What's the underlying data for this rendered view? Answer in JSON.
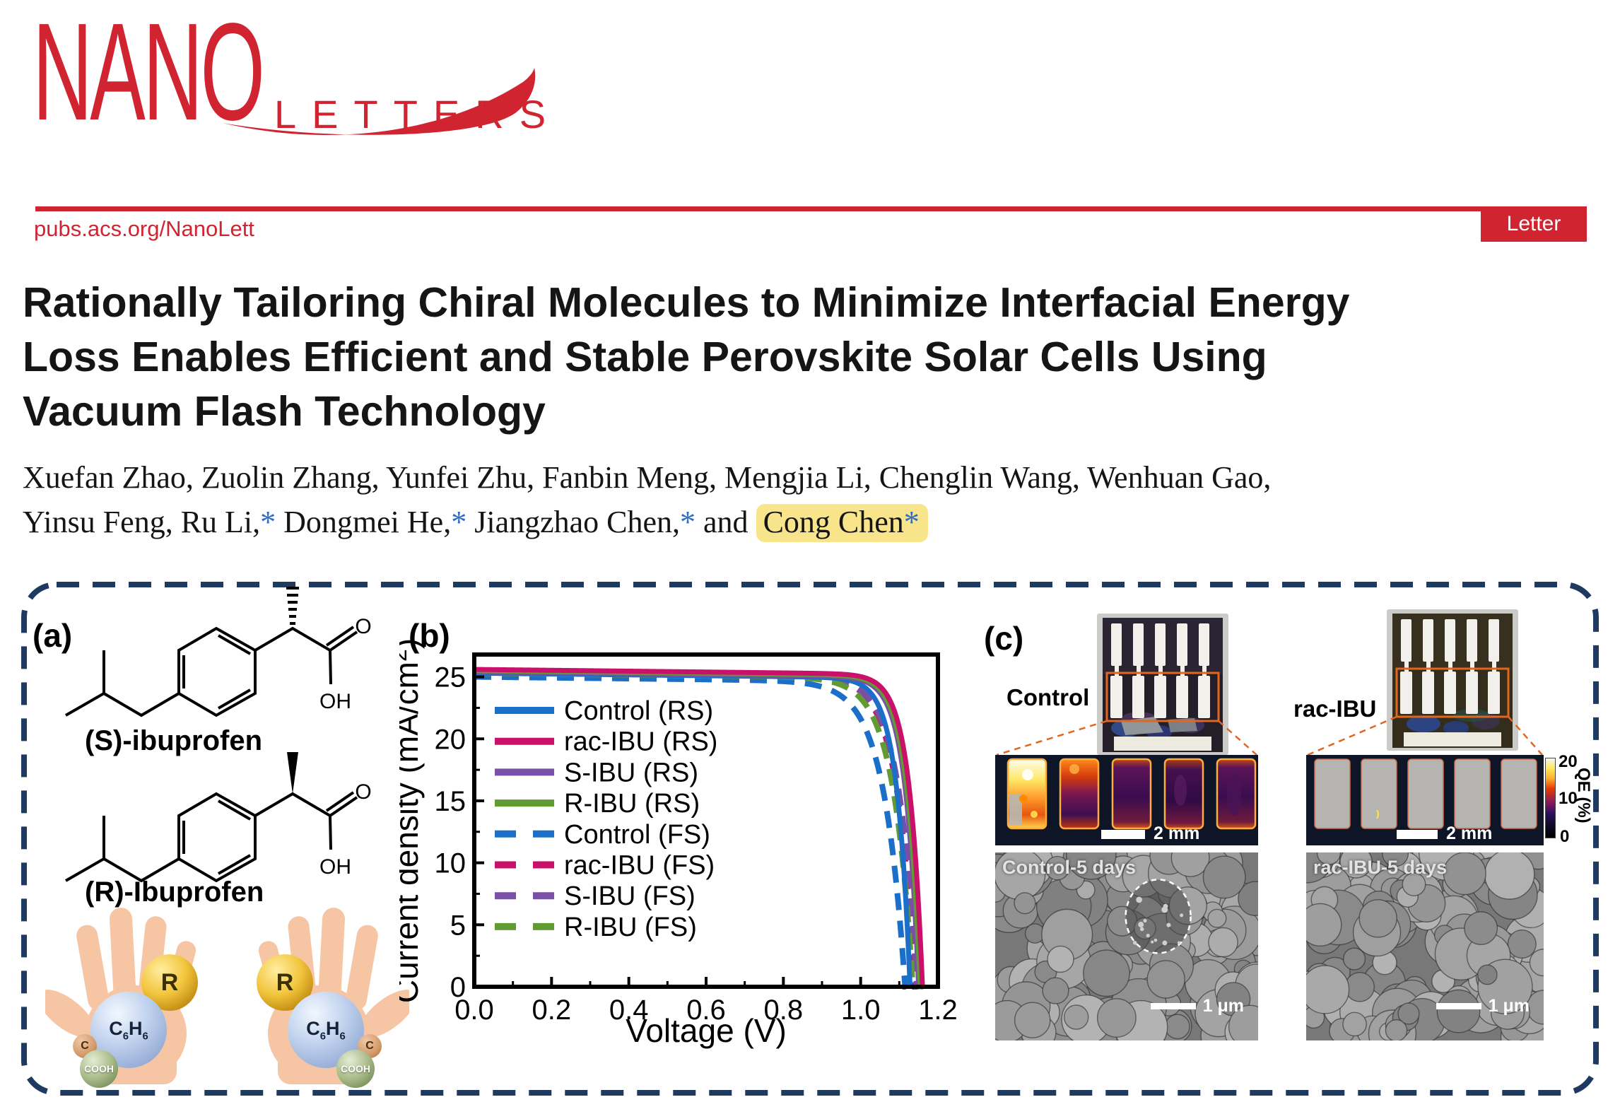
{
  "header": {
    "logo_main": "NANO",
    "logo_sub": "LETTERS",
    "site_url": "pubs.acs.org/NanoLett",
    "badge": "Letter",
    "accent_red": "#d02431"
  },
  "article": {
    "title_line1": "Rationally Tailoring Chiral Molecules to Minimize Interfacial Energy",
    "title_line2": "Loss Enables Efficient and Stable Perovskite Solar Cells Using",
    "title_line3": "Vacuum Flash Technology",
    "authors_line1": "Xuefan Zhao, Zuolin Zhang, Yunfei Zhu, Fanbin Meng, Mengjia Li, Chenglin Wang, Wenhuan Gao,",
    "authors_line2_seg1": "Yinsu Feng, Ru Li,",
    "authors_line2_seg2": " Dongmei He,",
    "authors_line2_seg3": " Jiangzhao Chen,",
    "authors_line2_seg4": " and ",
    "authors_highlight": "Cong Chen",
    "star": "*",
    "star_color": "#2f6cc5",
    "highlight_color": "#f8e48b"
  },
  "panel_a": {
    "label": "(a)",
    "top_molecule": "(S)-ibuprofen",
    "bottom_molecule": "(R)-Ibuprofen",
    "atom_o": "O",
    "atom_oh": "OH",
    "spheres": {
      "r": "R",
      "benzene_c": "C",
      "benzene_c_sub": "6",
      "benzene_h": "H",
      "benzene_h_sub": "6",
      "c": "C",
      "cooh": "COOH"
    }
  },
  "panel_b": {
    "label": "(b)"
  },
  "chart_data": {
    "type": "line",
    "title": "",
    "xlabel": "Voltage (V)",
    "ylabel_pre": "Current density (mA/cm",
    "ylabel_sup": "2",
    "ylabel_post": ")",
    "xlim": [
      0,
      1.2
    ],
    "ylim": [
      0,
      26.8
    ],
    "xticks": [
      0.0,
      0.2,
      0.4,
      0.6,
      0.8,
      1.0,
      1.2
    ],
    "yticks": [
      0,
      5,
      10,
      15,
      20,
      25
    ],
    "grid": false,
    "legend_position": "upper-left-inside",
    "series": [
      {
        "name": "Control (RS)",
        "color": "#1b6fc8",
        "style": "solid",
        "jsc_mA_cm2": 25.3,
        "voc_V": 1.128,
        "knee_softness": 0.034
      },
      {
        "name": "rac-IBU (RS)",
        "color": "#c9116b",
        "style": "solid",
        "jsc_mA_cm2": 25.6,
        "voc_V": 1.16,
        "knee_softness": 0.034
      },
      {
        "name": "S-IBU (RS)",
        "color": "#7a4fa8",
        "style": "solid",
        "jsc_mA_cm2": 25.4,
        "voc_V": 1.15,
        "knee_softness": 0.034
      },
      {
        "name": "R-IBU (RS)",
        "color": "#629a33",
        "style": "solid",
        "jsc_mA_cm2": 25.5,
        "voc_V": 1.154,
        "knee_softness": 0.034
      },
      {
        "name": "Control (FS)",
        "color": "#1b6fc8",
        "style": "dashed",
        "jsc_mA_cm2": 25.0,
        "voc_V": 1.115,
        "knee_softness": 0.055
      },
      {
        "name": "rac-IBU (FS)",
        "color": "#c9116b",
        "style": "dashed",
        "jsc_mA_cm2": 25.35,
        "voc_V": 1.14,
        "knee_softness": 0.046
      },
      {
        "name": "S-IBU (FS)",
        "color": "#7a4fa8",
        "style": "dashed",
        "jsc_mA_cm2": 25.3,
        "voc_V": 1.145,
        "knee_softness": 0.046
      },
      {
        "name": "R-IBU (FS)",
        "color": "#629a33",
        "style": "dashed",
        "jsc_mA_cm2": 25.3,
        "voc_V": 1.135,
        "knee_softness": 0.05
      }
    ]
  },
  "panel_c": {
    "label": "(c)",
    "device_left": "Control",
    "device_right": "rac-IBU",
    "qe_scalebar": "2 mm",
    "colorbar": {
      "max": "20",
      "mid": "10",
      "min": "0",
      "label": "QE (%)"
    },
    "sem_left": {
      "name": "Control-5 days",
      "scalebar": "1 μm"
    },
    "sem_right": {
      "name": "rac-IBU-5 days",
      "scalebar": "1 μm"
    }
  }
}
